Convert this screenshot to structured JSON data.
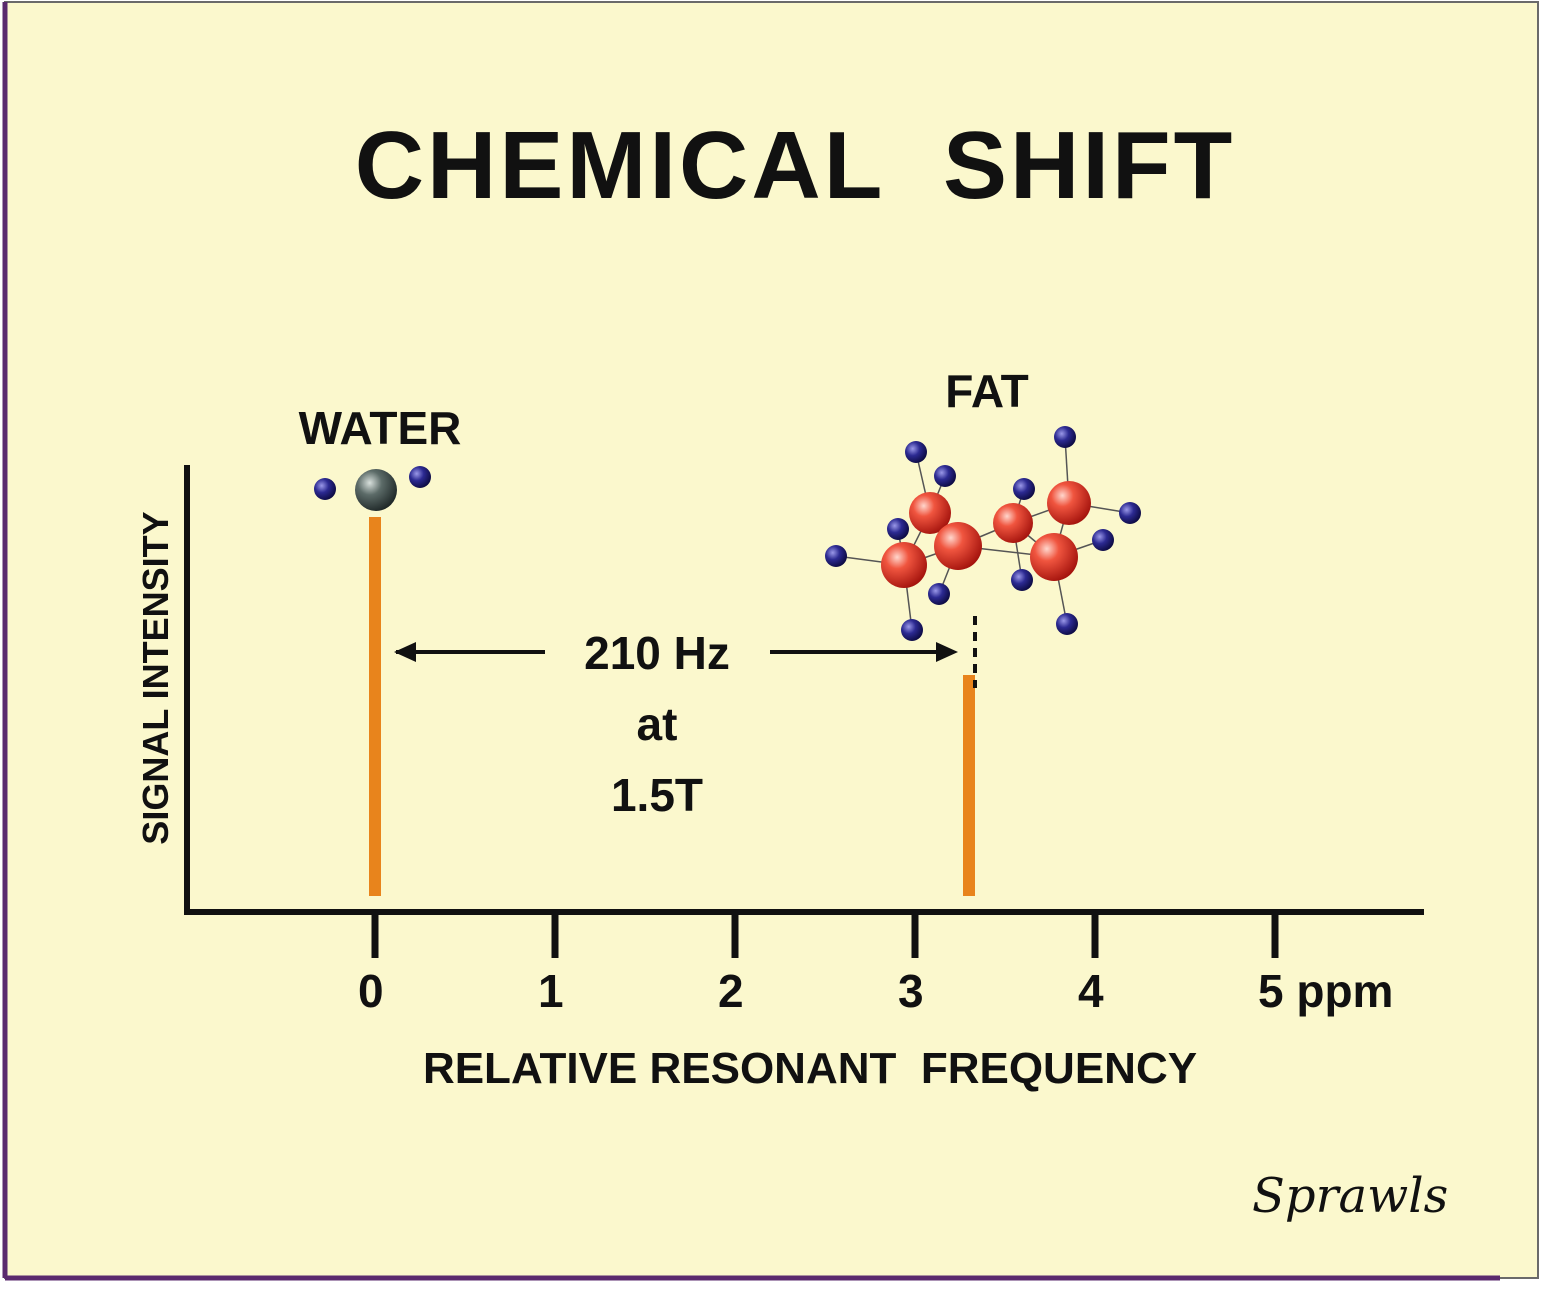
{
  "title": "CHEMICAL  SHIFT",
  "y_axis_label": "SIGNAL INTENSITY",
  "x_axis_label": "RELATIVE RESONANT  FREQUENCY",
  "x_ticks": [
    "0",
    "1",
    "2",
    "3",
    "4",
    "5 ppm"
  ],
  "peaks": [
    {
      "label": "WATER",
      "position_ppm": 0,
      "relative_height": 1.0
    },
    {
      "label": "FAT",
      "position_ppm": 3.3,
      "relative_height": 0.6
    }
  ],
  "shift_annotation": {
    "line1": "210 Hz",
    "line2": "at",
    "line3": "1.5T"
  },
  "signature": "Sprawls",
  "colors": {
    "background": "#fbf8cd",
    "border": "#5a2a6e",
    "peak": "#e8841c",
    "axis": "#111111",
    "oxygen_atom": "#3f4f4f",
    "carbon_atom": "#d92b20",
    "hydrogen_atom": "#1c1a78"
  },
  "icons": {
    "water": "water-molecule-icon",
    "fat": "fat-molecule-icon"
  }
}
